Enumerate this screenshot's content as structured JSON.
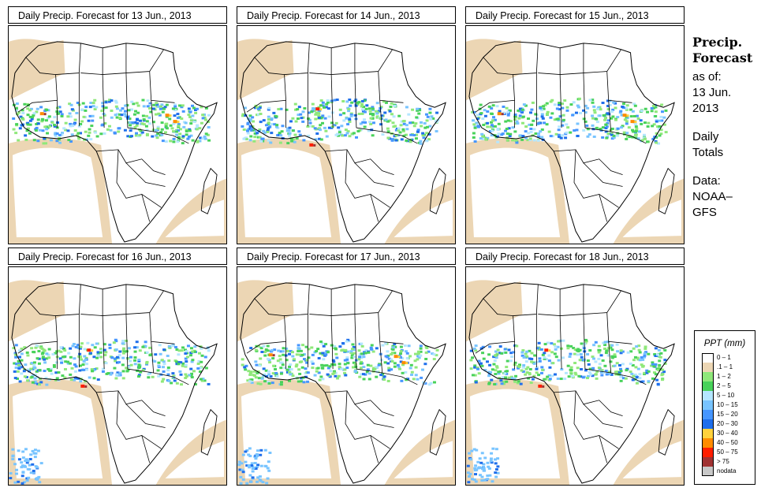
{
  "panels": [
    {
      "title": "Daily Precip. Forecast for  13 Jun., 2013"
    },
    {
      "title": "Daily Precip. Forecast for  14 Jun., 2013"
    },
    {
      "title": "Daily Precip. Forecast for  15 Jun., 2013"
    },
    {
      "title": "Daily Precip. Forecast for  16 Jun., 2013"
    },
    {
      "title": "Daily Precip. Forecast for  17 Jun., 2013"
    },
    {
      "title": "Daily Precip. Forecast for  18 Jun., 2013"
    }
  ],
  "sidebar": {
    "heading_line1": "Precip.",
    "heading_line2": "Forecast",
    "asof_label": "as of:",
    "asof_date_line1": "13 Jun.",
    "asof_date_line2": "2013",
    "totals_line1": "Daily",
    "totals_line2": "Totals",
    "data_line1": "Data:",
    "data_line2": "NOAA–",
    "data_line3": "GFS"
  },
  "legend": {
    "title": "PPT (mm)",
    "items": [
      {
        "label": "0 – 1",
        "color": "#ffffff"
      },
      {
        "label": ".1 – 1",
        "color": "#ecd6b4"
      },
      {
        "label": "1 – 2",
        "color": "#8fe87a"
      },
      {
        "label": "2 – 5",
        "color": "#48d25a"
      },
      {
        "label": "5 – 10",
        "color": "#b4e6ff"
      },
      {
        "label": "10 – 15",
        "color": "#78c4ff"
      },
      {
        "label": "15 – 20",
        "color": "#4696ff"
      },
      {
        "label": "20 – 30",
        "color": "#1e6eeb"
      },
      {
        "label": "30 – 40",
        "color": "#ffd23c"
      },
      {
        "label": "40 – 50",
        "color": "#ff8c00"
      },
      {
        "label": "50 – 75",
        "color": "#ff1e00"
      },
      {
        "label": "> 75",
        "color": "#a03232"
      },
      {
        "label": "nodata",
        "color": "#c8c8c8"
      }
    ]
  }
}
